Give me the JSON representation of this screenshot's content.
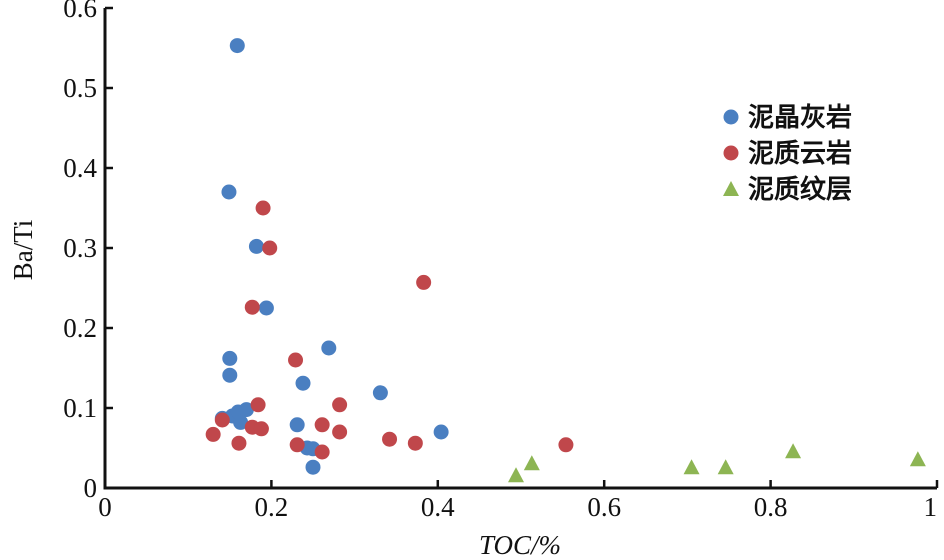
{
  "chart_data": {
    "type": "scatter",
    "title": "",
    "xlabel": "TOC/%",
    "ylabel": "Ba/Ti",
    "xlim": [
      0,
      1
    ],
    "ylim": [
      0,
      0.6
    ],
    "xticks": [
      0,
      0.2,
      0.4,
      0.6,
      0.8,
      1
    ],
    "xtick_labels": [
      "0",
      "0.2",
      "0.4",
      "0.6",
      "0.8",
      "1"
    ],
    "yticks": [
      0,
      0.1,
      0.2,
      0.3,
      0.4,
      0.5,
      0.6
    ],
    "ytick_labels": [
      "0",
      "0.1",
      "0.2",
      "0.3",
      "0.4",
      "0.5",
      "0.6"
    ],
    "grid": false,
    "legend_position": "right",
    "series": [
      {
        "name": "泥晶灰岩",
        "marker": "circle",
        "color": "#4a7fc1",
        "points": [
          [
            0.159,
            0.553
          ],
          [
            0.149,
            0.37
          ],
          [
            0.182,
            0.302
          ],
          [
            0.194,
            0.225
          ],
          [
            0.15,
            0.162
          ],
          [
            0.15,
            0.141
          ],
          [
            0.269,
            0.175
          ],
          [
            0.238,
            0.131
          ],
          [
            0.331,
            0.119
          ],
          [
            0.404,
            0.07
          ],
          [
            0.231,
            0.079
          ],
          [
            0.243,
            0.05
          ],
          [
            0.25,
            0.049
          ],
          [
            0.25,
            0.026
          ],
          [
            0.141,
            0.087
          ],
          [
            0.153,
            0.09
          ],
          [
            0.16,
            0.095
          ],
          [
            0.17,
            0.098
          ],
          [
            0.163,
            0.082
          ]
        ]
      },
      {
        "name": "泥质云岩",
        "marker": "circle",
        "color": "#c0474b",
        "points": [
          [
            0.19,
            0.35
          ],
          [
            0.198,
            0.3
          ],
          [
            0.177,
            0.226
          ],
          [
            0.184,
            0.104
          ],
          [
            0.141,
            0.085
          ],
          [
            0.13,
            0.067
          ],
          [
            0.161,
            0.056
          ],
          [
            0.177,
            0.076
          ],
          [
            0.188,
            0.074
          ],
          [
            0.229,
            0.16
          ],
          [
            0.231,
            0.054
          ],
          [
            0.261,
            0.079
          ],
          [
            0.261,
            0.045
          ],
          [
            0.282,
            0.104
          ],
          [
            0.282,
            0.07
          ],
          [
            0.342,
            0.061
          ],
          [
            0.373,
            0.056
          ],
          [
            0.383,
            0.257
          ],
          [
            0.554,
            0.054
          ]
        ]
      },
      {
        "name": "泥质纹层",
        "marker": "triangle",
        "color": "#8db553",
        "points": [
          [
            0.494,
            0.016
          ],
          [
            0.513,
            0.031
          ],
          [
            0.705,
            0.026
          ],
          [
            0.746,
            0.026
          ],
          [
            0.827,
            0.046
          ],
          [
            0.977,
            0.036
          ]
        ]
      }
    ]
  }
}
